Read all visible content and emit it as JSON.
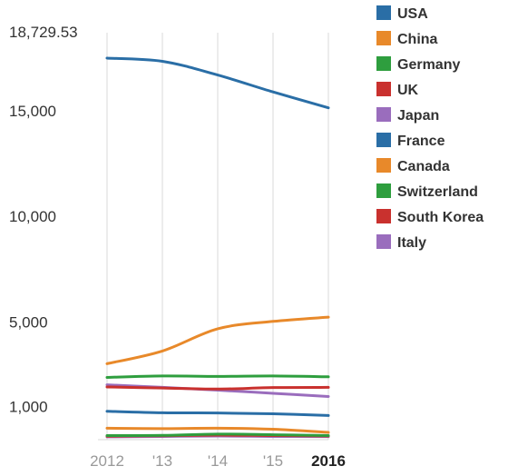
{
  "chart_data": {
    "type": "line",
    "x": [
      "2012",
      "'13",
      "'14",
      "'15",
      "2016"
    ],
    "y_ticks": [
      "18,729.53",
      "15,000",
      "10,000",
      "5,000",
      "1,000"
    ],
    "y_tick_values": [
      18729.53,
      15000,
      10000,
      5000,
      1000
    ],
    "ylim": [
      0,
      18729.53
    ],
    "grid": "vertical",
    "legend_position": "right",
    "series": [
      {
        "name": "USA",
        "color": "#2a6ea6",
        "values": [
          18000,
          17850,
          17200,
          16400,
          15650
        ]
      },
      {
        "name": "China",
        "color": "#e8892a",
        "values": [
          3550,
          4150,
          5200,
          5550,
          5750
        ]
      },
      {
        "name": "Germany",
        "color": "#2e9e3e",
        "values": [
          2900,
          2970,
          2950,
          2970,
          2930
        ]
      },
      {
        "name": "UK",
        "color": "#c9312e",
        "values": [
          2450,
          2400,
          2350,
          2420,
          2430
        ]
      },
      {
        "name": "Japan",
        "color": "#9a6dbd",
        "values": [
          2550,
          2430,
          2300,
          2150,
          2000
        ]
      },
      {
        "name": "France",
        "color": "#2a6ea6",
        "values": [
          1300,
          1230,
          1220,
          1180,
          1100
        ]
      },
      {
        "name": "Canada",
        "color": "#e8892a",
        "values": [
          500,
          480,
          500,
          450,
          300
        ]
      },
      {
        "name": "Switzerland",
        "color": "#2e9e3e",
        "values": [
          150,
          160,
          220,
          190,
          150
        ]
      },
      {
        "name": "South Korea",
        "color": "#c9312e",
        "values": [
          120,
          140,
          170,
          150,
          130
        ]
      },
      {
        "name": "Italy",
        "color": "#9a6dbd",
        "values": [
          90,
          110,
          130,
          110,
          100
        ]
      }
    ]
  }
}
